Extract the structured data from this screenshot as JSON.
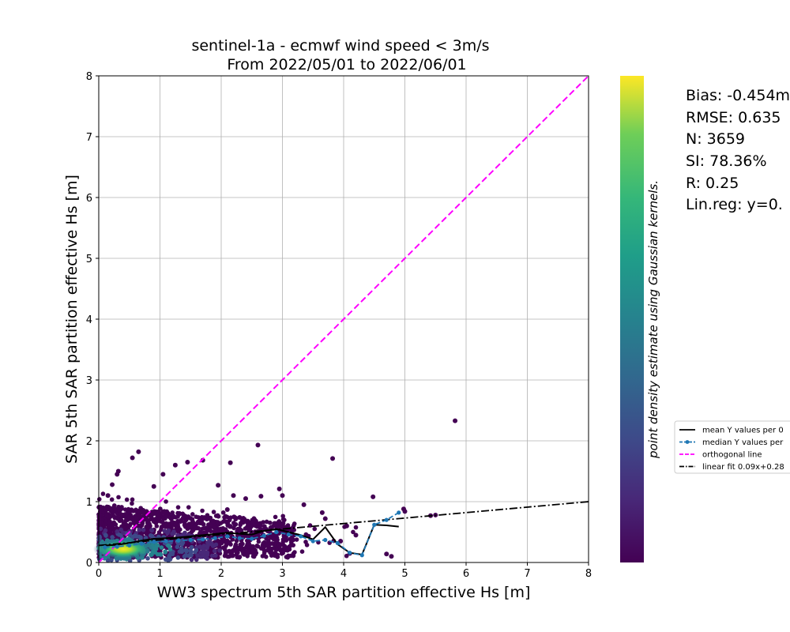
{
  "chart_data": {
    "type": "scatter",
    "title_line1": "sentinel-1a - ecmwf wind speed < 3m/s",
    "title_line2": "From 2022/05/01 to 2022/06/01",
    "xlabel": "WW3 spectrum 5th SAR partition effective Hs [m]",
    "ylabel": "SAR 5th SAR partition effective Hs [m]",
    "xlim": [
      0,
      8
    ],
    "ylim": [
      0,
      8
    ],
    "xticks": [
      0,
      1,
      2,
      3,
      4,
      5,
      6,
      7,
      8
    ],
    "yticks": [
      0,
      1,
      2,
      3,
      4,
      5,
      6,
      7,
      8
    ],
    "grid": true,
    "colorbar_label": "point density estimate using Gaussian kernels.",
    "stats": {
      "bias": "Bias: -0.454m",
      "rmse": "RMSE: 0.635",
      "n": "N: 3659",
      "si": "SI: 78.36%",
      "r": "R: 0.25",
      "linreg": "Lin.reg: y=0."
    },
    "legend": {
      "placement": "right",
      "entries": [
        {
          "label": "mean Y values per 0",
          "style": "solid",
          "color": "#000000"
        },
        {
          "label": "median Y values per",
          "style": "dashed-dot-marker",
          "color": "#1f77b4"
        },
        {
          "label": "orthogonal line",
          "style": "dashed",
          "color": "#ff00ff"
        },
        {
          "label": "linear fit 0.09x+0.28",
          "style": "dashdot",
          "color": "#000000"
        }
      ]
    },
    "orthogonal_line": {
      "x": [
        0,
        8
      ],
      "y": [
        0,
        8
      ],
      "color": "#ff00ff"
    },
    "linear_fit": {
      "slope": 0.09,
      "intercept": 0.28,
      "x": [
        0,
        8
      ]
    },
    "mean_line": {
      "x": [
        0.1,
        0.3,
        0.5,
        0.7,
        0.9,
        1.1,
        1.3,
        1.5,
        1.7,
        1.9,
        2.1,
        2.3,
        2.5,
        2.7,
        2.9,
        3.1,
        3.3,
        3.5,
        3.7,
        3.9,
        4.1,
        4.3,
        4.5,
        4.7,
        4.9
      ],
      "y": [
        0.28,
        0.29,
        0.32,
        0.36,
        0.39,
        0.4,
        0.41,
        0.43,
        0.45,
        0.47,
        0.49,
        0.47,
        0.46,
        0.52,
        0.55,
        0.5,
        0.45,
        0.38,
        0.58,
        0.3,
        0.16,
        0.13,
        0.62,
        0.61,
        0.59
      ]
    },
    "median_line": {
      "x": [
        0.1,
        0.3,
        0.5,
        0.7,
        0.9,
        1.1,
        1.3,
        1.5,
        1.7,
        1.9,
        2.1,
        2.3,
        2.5,
        2.7,
        2.9,
        3.1,
        3.3,
        3.5,
        3.7,
        3.9,
        4.1,
        4.3,
        4.5,
        4.7,
        4.9
      ],
      "y": [
        0.25,
        0.26,
        0.28,
        0.31,
        0.34,
        0.35,
        0.36,
        0.37,
        0.38,
        0.4,
        0.43,
        0.4,
        0.39,
        0.44,
        0.5,
        0.46,
        0.43,
        0.35,
        0.37,
        0.32,
        0.16,
        0.12,
        0.62,
        0.7,
        0.82
      ]
    },
    "outliers": [
      {
        "x": 5.82,
        "y": 2.33
      },
      {
        "x": 2.6,
        "y": 1.93
      },
      {
        "x": 0.65,
        "y": 1.82
      },
      {
        "x": 0.55,
        "y": 1.72
      },
      {
        "x": 0.32,
        "y": 1.5
      },
      {
        "x": 0.3,
        "y": 1.45
      },
      {
        "x": 1.25,
        "y": 1.6
      },
      {
        "x": 1.45,
        "y": 1.65
      },
      {
        "x": 1.7,
        "y": 1.68
      },
      {
        "x": 3.82,
        "y": 1.71
      },
      {
        "x": 2.15,
        "y": 1.64
      },
      {
        "x": 1.95,
        "y": 1.27
      },
      {
        "x": 4.48,
        "y": 1.08
      },
      {
        "x": 4.98,
        "y": 0.88
      },
      {
        "x": 5.0,
        "y": 0.84
      },
      {
        "x": 5.5,
        "y": 0.78
      },
      {
        "x": 5.42,
        "y": 0.77
      },
      {
        "x": 4.78,
        "y": 0.1
      },
      {
        "x": 4.7,
        "y": 0.14
      },
      {
        "x": 3.65,
        "y": 0.82
      },
      {
        "x": 3.7,
        "y": 0.72
      },
      {
        "x": 3.35,
        "y": 0.95
      },
      {
        "x": 2.95,
        "y": 1.21
      },
      {
        "x": 3.0,
        "y": 1.1
      },
      {
        "x": 2.65,
        "y": 1.09
      },
      {
        "x": 2.4,
        "y": 1.05
      },
      {
        "x": 2.2,
        "y": 1.1
      },
      {
        "x": 2.1,
        "y": 0.87
      },
      {
        "x": 1.05,
        "y": 1.45
      },
      {
        "x": 0.9,
        "y": 1.25
      },
      {
        "x": 0.15,
        "y": 1.1
      },
      {
        "x": 0.22,
        "y": 1.28
      },
      {
        "x": 4.05,
        "y": 0.6
      },
      {
        "x": 4.2,
        "y": 0.45
      },
      {
        "x": 3.95,
        "y": 0.35
      },
      {
        "x": 4.1,
        "y": 0.15
      }
    ],
    "density_core": {
      "x": 0.4,
      "y": 0.22
    }
  }
}
